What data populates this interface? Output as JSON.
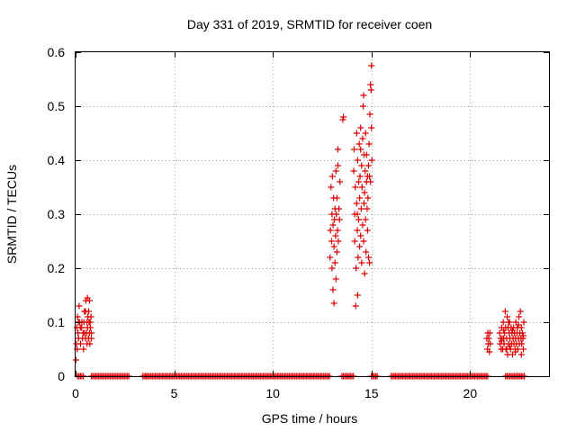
{
  "chart_data": {
    "type": "scatter",
    "title": "Day 331 of 2019, SRMTID for receiver coen",
    "xlabel": "GPS time / hours",
    "ylabel": "SRMTID / TECUs",
    "xlim": [
      0,
      24
    ],
    "ylim": [
      0,
      0.6
    ],
    "x_ticks": [
      0,
      5,
      10,
      15,
      20
    ],
    "x_tick_labels": [
      "0",
      "5",
      "10",
      "15",
      "20"
    ],
    "y_ticks": [
      0,
      0.1,
      0.2,
      0.3,
      0.4,
      0.5,
      0.6
    ],
    "y_tick_labels": [
      "0",
      "0.1",
      "0.2",
      "0.3",
      "0.4",
      "0.5",
      "0.6"
    ],
    "grid": true,
    "marker": "+",
    "marker_color": "#dd0000",
    "series": [
      {
        "name": "SRMTID",
        "points": [
          [
            0.02,
            0.03
          ],
          [
            0.04,
            0.06
          ],
          [
            0.06,
            0.09
          ],
          [
            0.08,
            0.05
          ],
          [
            0.1,
            0.11
          ],
          [
            0.12,
            0.08
          ],
          [
            0.15,
            0.07
          ],
          [
            0.18,
            0.13
          ],
          [
            0.2,
            0.1
          ],
          [
            0.25,
            0.06
          ],
          [
            0.3,
            0.09
          ],
          [
            0.35,
            0.07
          ],
          [
            0.4,
            0.05
          ],
          [
            0.42,
            0.1
          ],
          [
            0.45,
            0.08
          ],
          [
            0.5,
            0.07
          ],
          [
            0.5,
            0.12
          ],
          [
            0.52,
            0.14
          ],
          [
            0.55,
            0.08
          ],
          [
            0.58,
            0.06
          ],
          [
            0.6,
            0.09
          ],
          [
            0.6,
            0.145
          ],
          [
            0.62,
            0.11
          ],
          [
            0.65,
            0.07
          ],
          [
            0.68,
            0.1
          ],
          [
            0.7,
            0.08
          ],
          [
            0.7,
            0.14
          ],
          [
            0.72,
            0.06
          ],
          [
            0.75,
            0.09
          ],
          [
            0.78,
            0.11
          ],
          [
            0.8,
            0.08
          ],
          [
            0.8,
            0.07
          ],
          [
            0.32,
            0.1
          ],
          [
            0.45,
            0.12
          ],
          [
            0.58,
            0.1
          ],
          [
            0.66,
            0.12
          ],
          [
            0.38,
            0.08
          ],
          [
            0.24,
            0.09
          ],
          [
            0.14,
            0.1
          ],
          [
            0.74,
            0.1
          ],
          [
            12.9,
            0.22
          ],
          [
            12.92,
            0.27
          ],
          [
            12.95,
            0.35
          ],
          [
            12.98,
            0.25
          ],
          [
            13.0,
            0.3
          ],
          [
            13.0,
            0.2
          ],
          [
            13.02,
            0.37
          ],
          [
            13.05,
            0.28
          ],
          [
            13.05,
            0.16
          ],
          [
            13.08,
            0.33
          ],
          [
            13.1,
            0.24
          ],
          [
            13.1,
            0.135
          ],
          [
            13.12,
            0.29
          ],
          [
            13.15,
            0.21
          ],
          [
            13.15,
            0.31
          ],
          [
            13.18,
            0.26
          ],
          [
            13.2,
            0.38
          ],
          [
            13.2,
            0.18
          ],
          [
            13.22,
            0.3
          ],
          [
            13.25,
            0.23
          ],
          [
            13.25,
            0.33
          ],
          [
            13.28,
            0.27
          ],
          [
            13.3,
            0.39
          ],
          [
            13.3,
            0.42
          ],
          [
            13.32,
            0.25
          ],
          [
            13.35,
            0.31
          ],
          [
            13.38,
            0.29
          ],
          [
            13.4,
            0.36
          ],
          [
            13.55,
            0.475
          ],
          [
            13.58,
            0.48
          ],
          [
            14.1,
            0.38
          ],
          [
            14.12,
            0.42
          ],
          [
            14.15,
            0.3
          ],
          [
            14.15,
            0.25
          ],
          [
            14.18,
            0.35
          ],
          [
            14.2,
            0.13
          ],
          [
            14.22,
            0.2
          ],
          [
            14.25,
            0.32
          ],
          [
            14.25,
            0.45
          ],
          [
            14.28,
            0.27
          ],
          [
            14.3,
            0.4
          ],
          [
            14.3,
            0.15
          ],
          [
            14.32,
            0.22
          ],
          [
            14.35,
            0.36
          ],
          [
            14.35,
            0.29
          ],
          [
            14.38,
            0.43
          ],
          [
            14.4,
            0.24
          ],
          [
            14.4,
            0.33
          ],
          [
            14.42,
            0.37
          ],
          [
            14.45,
            0.26
          ],
          [
            14.45,
            0.46
          ],
          [
            14.48,
            0.31
          ],
          [
            14.5,
            0.39
          ],
          [
            14.5,
            0.21
          ],
          [
            14.52,
            0.35
          ],
          [
            14.55,
            0.28
          ],
          [
            14.55,
            0.44
          ],
          [
            14.58,
            0.5
          ],
          [
            14.6,
            0.52
          ],
          [
            14.6,
            0.25
          ],
          [
            14.62,
            0.41
          ],
          [
            14.65,
            0.34
          ],
          [
            14.65,
            0.19
          ],
          [
            14.68,
            0.38
          ],
          [
            14.7,
            0.29
          ],
          [
            14.7,
            0.45
          ],
          [
            14.72,
            0.23
          ],
          [
            14.75,
            0.36
          ],
          [
            14.75,
            0.41
          ],
          [
            14.78,
            0.31
          ],
          [
            14.8,
            0.37
          ],
          [
            14.8,
            0.27
          ],
          [
            14.82,
            0.33
          ],
          [
            14.85,
            0.22
          ],
          [
            14.85,
            0.39
          ],
          [
            14.88,
            0.43
          ],
          [
            14.9,
            0.37
          ],
          [
            14.9,
            0.21
          ],
          [
            14.92,
            0.485
          ],
          [
            14.95,
            0.36
          ],
          [
            14.95,
            0.54
          ],
          [
            14.98,
            0.53
          ],
          [
            15.0,
            0.575
          ],
          [
            15.0,
            0.46
          ],
          [
            15.02,
            0.4
          ],
          [
            14.28,
            0.3
          ],
          [
            14.62,
            0.32
          ],
          [
            14.45,
            0.42
          ],
          [
            20.85,
            0.07
          ],
          [
            20.88,
            0.05
          ],
          [
            20.9,
            0.08
          ],
          [
            20.92,
            0.06
          ],
          [
            20.95,
            0.07
          ],
          [
            20.98,
            0.045
          ],
          [
            21.0,
            0.08
          ],
          [
            21.02,
            0.06
          ],
          [
            21.5,
            0.08
          ],
          [
            21.52,
            0.06
          ],
          [
            21.55,
            0.07
          ],
          [
            21.58,
            0.05
          ],
          [
            21.6,
            0.09
          ],
          [
            21.62,
            0.07
          ],
          [
            21.65,
            0.05
          ],
          [
            21.68,
            0.1
          ],
          [
            21.7,
            0.07
          ],
          [
            21.72,
            0.06
          ],
          [
            21.75,
            0.08
          ],
          [
            21.78,
            0.12
          ],
          [
            21.8,
            0.09
          ],
          [
            21.82,
            0.05
          ],
          [
            21.85,
            0.07
          ],
          [
            21.88,
            0.11
          ],
          [
            21.9,
            0.04
          ],
          [
            21.92,
            0.09
          ],
          [
            21.95,
            0.06
          ],
          [
            21.98,
            0.08
          ],
          [
            22.0,
            0.1
          ],
          [
            22.02,
            0.07
          ],
          [
            22.05,
            0.05
          ],
          [
            22.08,
            0.09
          ],
          [
            22.1,
            0.06
          ],
          [
            22.12,
            0.08
          ],
          [
            22.15,
            0.04
          ],
          [
            22.18,
            0.07
          ],
          [
            22.2,
            0.09
          ],
          [
            22.22,
            0.06
          ],
          [
            22.25,
            0.08
          ],
          [
            22.28,
            0.05
          ],
          [
            22.3,
            0.07
          ],
          [
            22.32,
            0.1
          ],
          [
            22.35,
            0.06
          ],
          [
            22.38,
            0.08
          ],
          [
            22.4,
            0.09
          ],
          [
            22.42,
            0.05
          ],
          [
            22.45,
            0.07
          ],
          [
            22.48,
            0.11
          ],
          [
            22.5,
            0.06
          ],
          [
            22.52,
            0.08
          ],
          [
            22.55,
            0.12
          ],
          [
            22.58,
            0.07
          ],
          [
            22.6,
            0.09
          ],
          [
            22.62,
            0.06
          ],
          [
            22.65,
            0.08
          ],
          [
            22.68,
            0.07
          ],
          [
            22.7,
            0.05
          ],
          [
            22.72,
            0.1
          ],
          [
            21.6,
            0.065
          ],
          [
            21.7,
            0.085
          ],
          [
            21.85,
            0.05
          ],
          [
            22.0,
            0.055
          ],
          [
            22.15,
            0.085
          ],
          [
            22.3,
            0.045
          ],
          [
            22.45,
            0.095
          ],
          [
            22.6,
            0.04
          ],
          [
            22.7,
            0.075
          ],
          [
            21.95,
            0.1
          ]
        ]
      }
    ],
    "zero_bands": [
      [
        0.1,
        0.4
      ],
      [
        0.8,
        2.7
      ],
      [
        3.4,
        3.6
      ],
      [
        3.6,
        12.9
      ],
      [
        13.5,
        14.1
      ],
      [
        15.0,
        15.3
      ],
      [
        16.0,
        20.9
      ],
      [
        21.8,
        22.8
      ]
    ]
  }
}
